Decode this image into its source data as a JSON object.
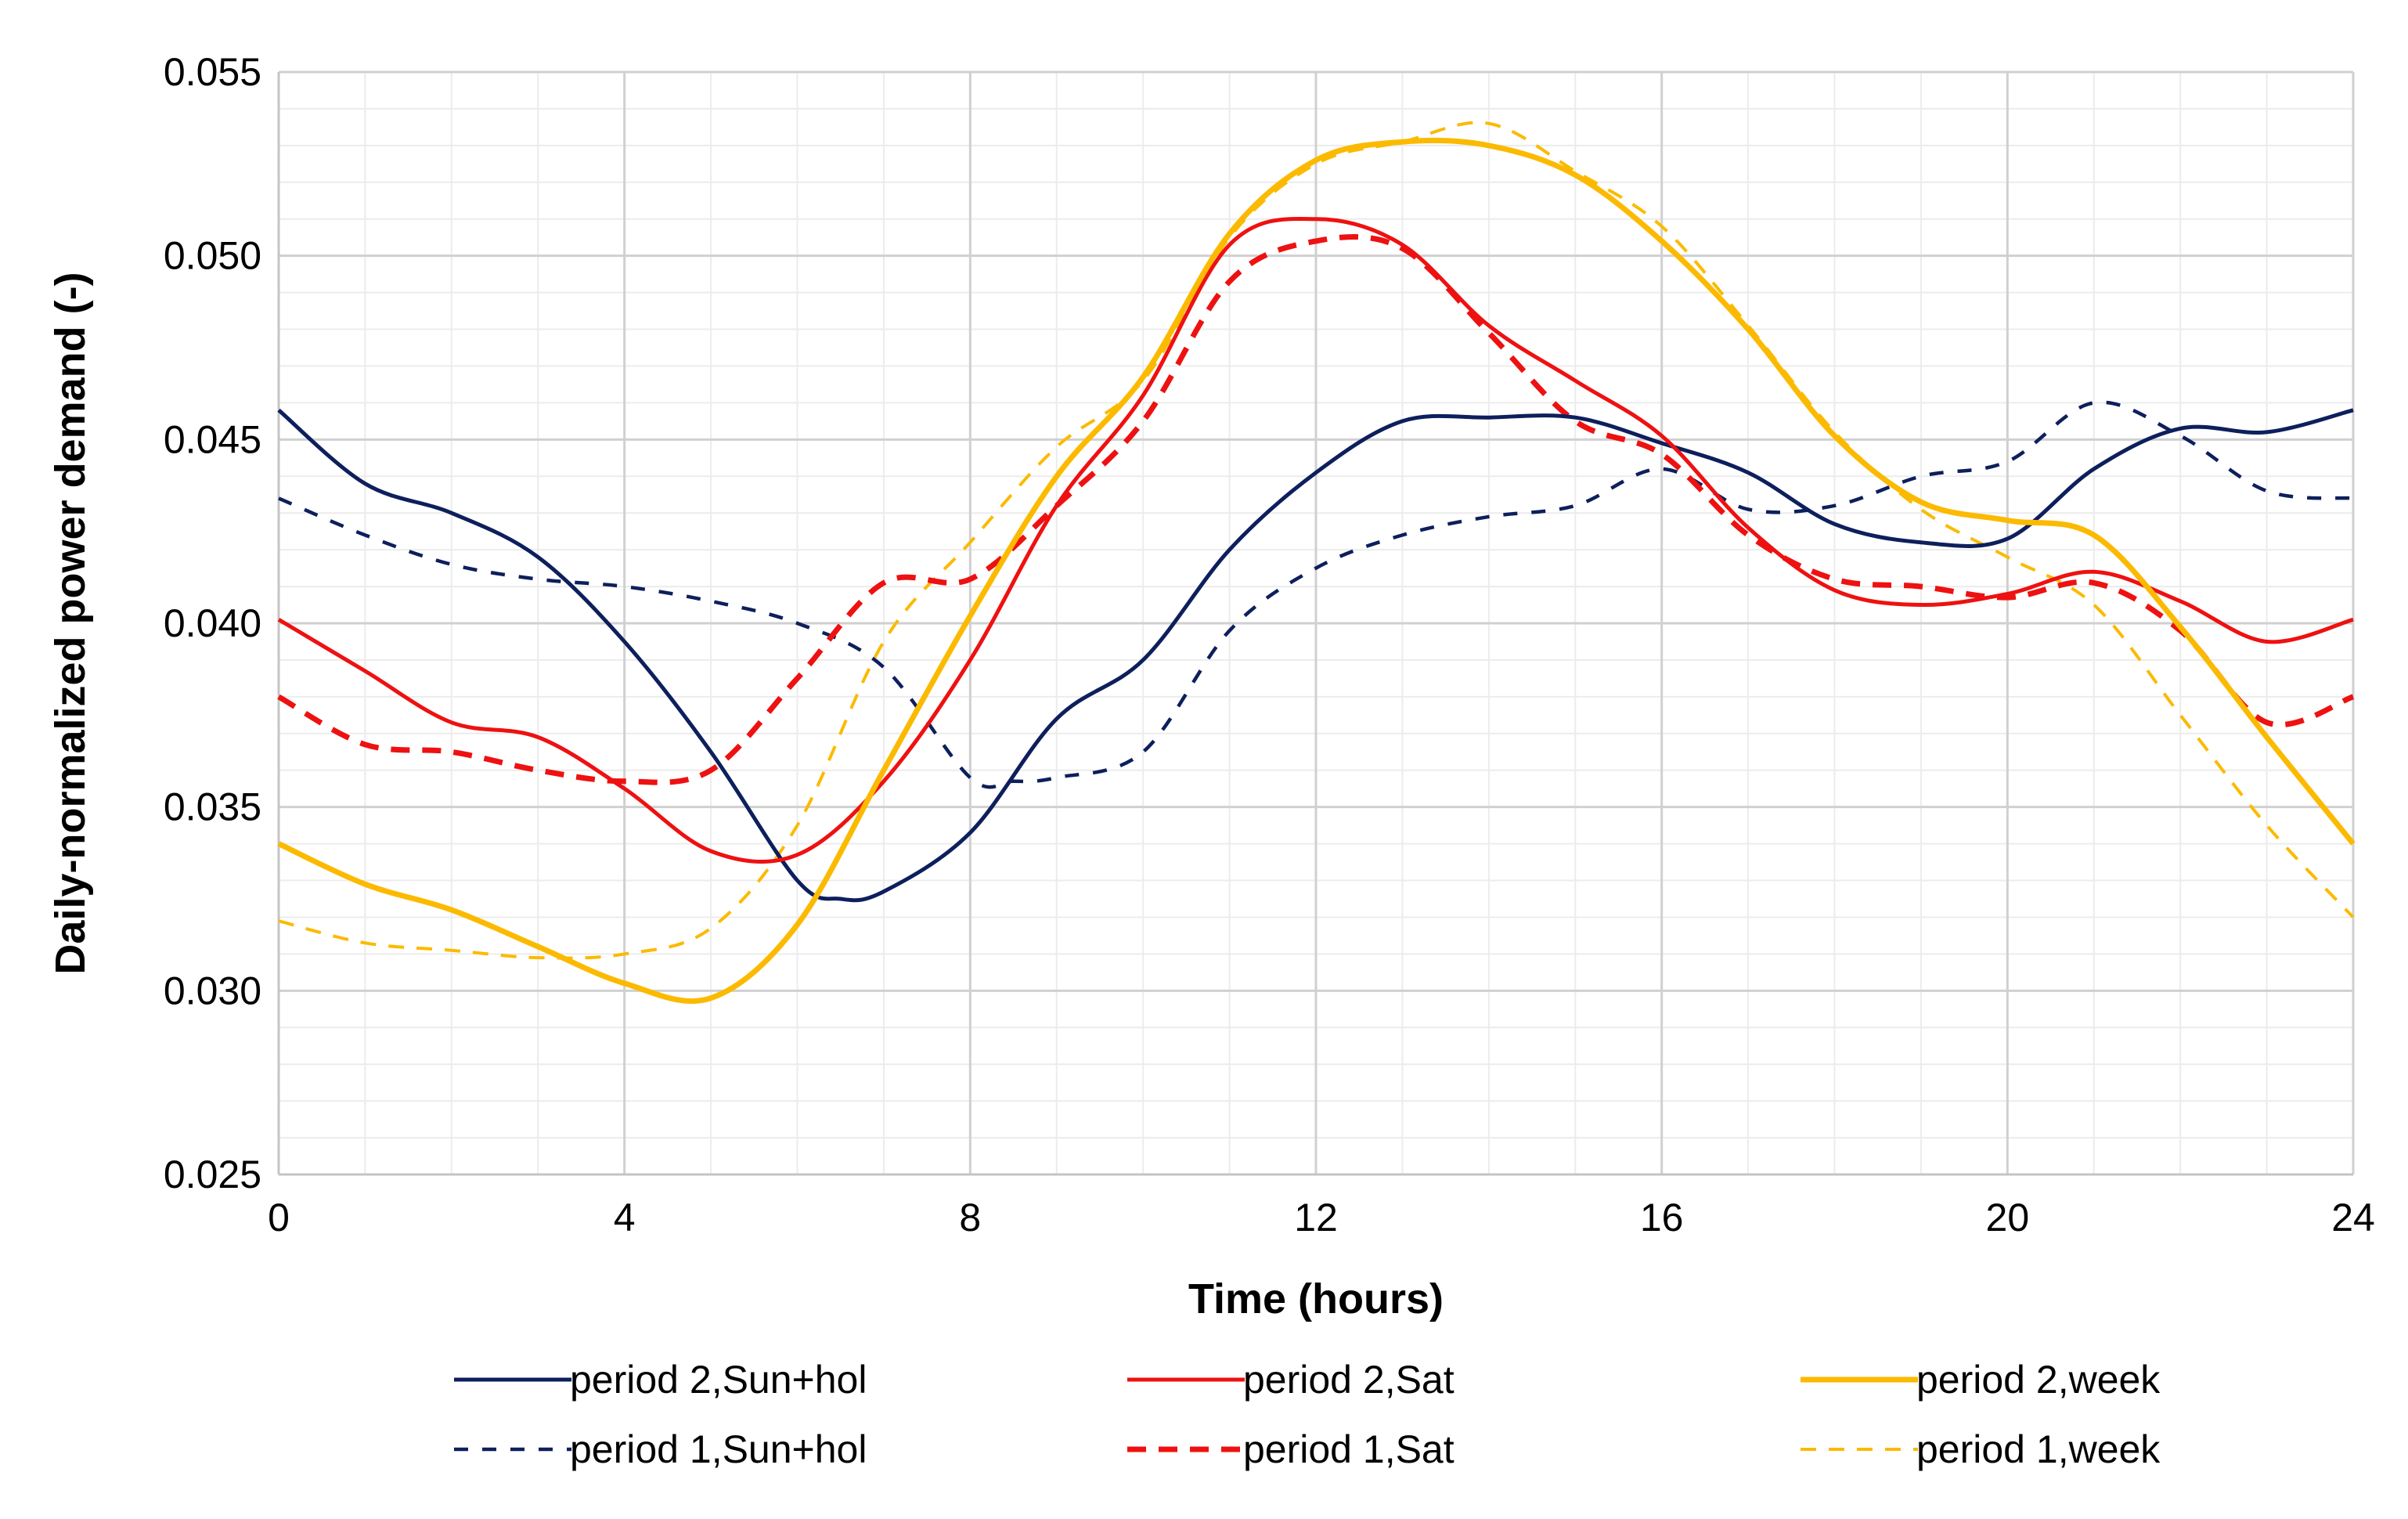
{
  "chart_data": {
    "type": "line",
    "title": "",
    "xlabel": "Time (hours)",
    "ylabel": "Daily-normalized power demand (-)",
    "xlim": [
      0,
      24
    ],
    "ylim": [
      0.025,
      0.055
    ],
    "xticks": [
      0,
      4,
      8,
      12,
      16,
      20,
      24
    ],
    "xtick_labels": [
      "0",
      "4",
      "8",
      "12",
      "16",
      "20",
      "24"
    ],
    "yticks": [
      0.025,
      0.03,
      0.035,
      0.04,
      0.045,
      0.05,
      0.055
    ],
    "ytick_labels": [
      "0.025",
      "0.030",
      "0.035",
      "0.040",
      "0.045",
      "0.050",
      "0.055"
    ],
    "grid": true,
    "minor_grid": true,
    "legend_position": "bottom",
    "series": [
      {
        "name": "period 2,Sun+hol",
        "color": "#0d1f5c",
        "dash": "solid",
        "x": [
          0,
          1,
          2,
          3,
          4,
          5,
          6,
          6.5,
          7,
          8,
          9,
          10,
          11,
          12,
          13,
          14,
          15,
          16,
          17,
          18,
          19,
          20,
          21,
          22,
          23,
          24
        ],
        "y": [
          0.0458,
          0.0438,
          0.043,
          0.0418,
          0.0395,
          0.0365,
          0.033,
          0.0325,
          0.0327,
          0.0343,
          0.0374,
          0.039,
          0.042,
          0.0441,
          0.0455,
          0.0456,
          0.0456,
          0.0449,
          0.0441,
          0.0427,
          0.0422,
          0.0423,
          0.0442,
          0.0453,
          0.0452,
          0.0458
        ]
      },
      {
        "name": "period 2,Sat",
        "color": "#ee1111",
        "dash": "solid",
        "x": [
          0,
          1,
          2,
          3,
          4,
          5,
          6,
          7,
          8,
          9,
          10,
          11,
          12,
          13,
          14,
          15,
          16,
          17,
          18,
          19,
          20,
          21,
          22,
          23,
          24
        ],
        "y": [
          0.0401,
          0.0387,
          0.0373,
          0.0369,
          0.0355,
          0.0338,
          0.0337,
          0.0357,
          0.039,
          0.0432,
          0.0462,
          0.0503,
          0.051,
          0.0503,
          0.0481,
          0.0466,
          0.0451,
          0.0426,
          0.0409,
          0.0405,
          0.0408,
          0.0414,
          0.0406,
          0.0395,
          0.0401
        ]
      },
      {
        "name": "period 2,week",
        "color": "#fbba00",
        "dash": "solid",
        "x": [
          0,
          1,
          2,
          3,
          4,
          5,
          6,
          7,
          8,
          9,
          10,
          11,
          12,
          13,
          14,
          15,
          16,
          17,
          18,
          19,
          20,
          21,
          22,
          23,
          24
        ],
        "y": [
          0.034,
          0.0329,
          0.0322,
          0.0312,
          0.0302,
          0.0298,
          0.0318,
          0.036,
          0.0402,
          0.044,
          0.0467,
          0.0506,
          0.0526,
          0.0531,
          0.053,
          0.0522,
          0.0504,
          0.048,
          0.0451,
          0.0433,
          0.0428,
          0.0424,
          0.0399,
          0.0369,
          0.034
        ]
      },
      {
        "name": "period 1,Sun+hol",
        "color": "#0d1f5c",
        "dash": "dash",
        "x": [
          0,
          1,
          2,
          3,
          4,
          5,
          6,
          7,
          8,
          8.5,
          9,
          10,
          11,
          12,
          13,
          14,
          15,
          16,
          17,
          18,
          19,
          20,
          21,
          22,
          23,
          24
        ],
        "y": [
          0.0434,
          0.0424,
          0.0416,
          0.0412,
          0.041,
          0.0406,
          0.04,
          0.0388,
          0.0358,
          0.0357,
          0.0358,
          0.0365,
          0.0398,
          0.0415,
          0.0424,
          0.0429,
          0.0432,
          0.0442,
          0.0431,
          0.0432,
          0.044,
          0.0444,
          0.046,
          0.0451,
          0.0436,
          0.0434
        ]
      },
      {
        "name": "period 1,Sat",
        "color": "#ee1111",
        "dash": "dash",
        "x": [
          0,
          1,
          2,
          3,
          4,
          5,
          6,
          7,
          8,
          9,
          10,
          11,
          12,
          13,
          14,
          15,
          16,
          17,
          18,
          19,
          20,
          21,
          22,
          23,
          24
        ],
        "y": [
          0.038,
          0.0367,
          0.0365,
          0.036,
          0.0357,
          0.036,
          0.0385,
          0.0411,
          0.0412,
          0.0432,
          0.0455,
          0.0493,
          0.0504,
          0.0502,
          0.0479,
          0.0455,
          0.0446,
          0.0424,
          0.0412,
          0.041,
          0.0407,
          0.0411,
          0.0398,
          0.0373,
          0.038
        ]
      },
      {
        "name": "period 1,week",
        "color": "#fbba00",
        "dash": "shortdash",
        "x": [
          0,
          1,
          2,
          3,
          4,
          5,
          6,
          7,
          8,
          9,
          10,
          11,
          12,
          13,
          14,
          15,
          16,
          17,
          18,
          19,
          20,
          21,
          22,
          23,
          24
        ],
        "y": [
          0.0319,
          0.0313,
          0.0311,
          0.0309,
          0.031,
          0.0317,
          0.0345,
          0.0395,
          0.0422,
          0.0448,
          0.0466,
          0.0505,
          0.0525,
          0.0531,
          0.0536,
          0.0523,
          0.0508,
          0.0481,
          0.0452,
          0.0431,
          0.0418,
          0.0405,
          0.0375,
          0.0345,
          0.032
        ]
      }
    ]
  }
}
